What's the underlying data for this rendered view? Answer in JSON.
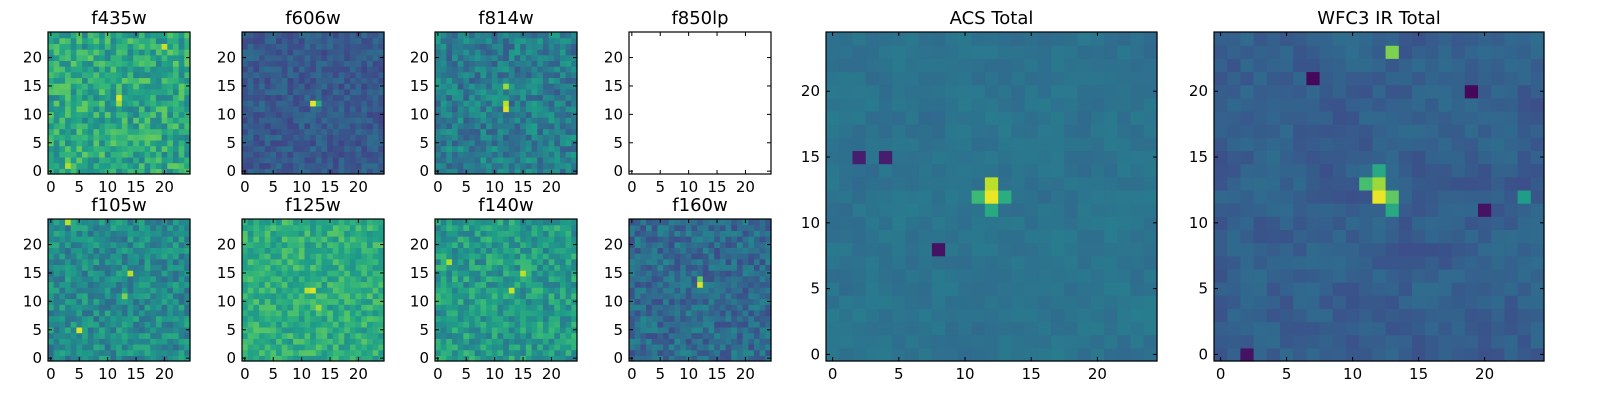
{
  "colors": {
    "colormap": "viridis",
    "viridis_stops": [
      "#440154",
      "#482878",
      "#3e4989",
      "#31688e",
      "#26828e",
      "#1f9e89",
      "#35b779",
      "#6ece58",
      "#b5de2b",
      "#fde725"
    ],
    "axis": "#000000",
    "background": "#ffffff"
  },
  "chart_data": [
    {
      "type": "heatmap",
      "title": "f435w",
      "grid_size": 25,
      "xticks": [
        "0",
        "5",
        "10",
        "15",
        "20"
      ],
      "yticks": [
        "0",
        "5",
        "10",
        "15",
        "20"
      ],
      "xlim": [
        -0.5,
        24.5
      ],
      "ylim": [
        -0.5,
        24.5
      ],
      "grid": false,
      "style": "noisy",
      "background_level": 0.6,
      "noise": 0.16,
      "peaks": [
        {
          "x": 12,
          "y": 13,
          "value": 0.95
        },
        {
          "x": 12,
          "y": 12,
          "value": 0.85
        },
        {
          "x": 20,
          "y": 22,
          "value": 0.92
        },
        {
          "x": 3,
          "y": 1,
          "value": 0.88
        }
      ]
    },
    {
      "type": "heatmap",
      "title": "f606w",
      "grid_size": 25,
      "xticks": [
        "0",
        "5",
        "10",
        "15",
        "20"
      ],
      "yticks": [
        "0",
        "5",
        "10",
        "15",
        "20"
      ],
      "xlim": [
        -0.5,
        24.5
      ],
      "ylim": [
        -0.5,
        24.5
      ],
      "grid": false,
      "style": "noisy",
      "background_level": 0.28,
      "noise": 0.08,
      "peaks": [
        {
          "x": 12,
          "y": 12,
          "value": 0.97
        },
        {
          "x": 13,
          "y": 12,
          "value": 0.6
        }
      ]
    },
    {
      "type": "heatmap",
      "title": "f814w",
      "grid_size": 25,
      "xticks": [
        "0",
        "5",
        "10",
        "15",
        "20"
      ],
      "yticks": [
        "0",
        "5",
        "10",
        "15",
        "20"
      ],
      "xlim": [
        -0.5,
        24.5
      ],
      "ylim": [
        -0.5,
        24.5
      ],
      "grid": false,
      "style": "noisy",
      "background_level": 0.42,
      "noise": 0.14,
      "peaks": [
        {
          "x": 12,
          "y": 11,
          "value": 0.95
        },
        {
          "x": 12,
          "y": 12,
          "value": 0.9
        },
        {
          "x": 12,
          "y": 15,
          "value": 0.85
        }
      ]
    },
    {
      "type": "heatmap",
      "title": "f850lp",
      "grid_size": 25,
      "xticks": [
        "0",
        "5",
        "10",
        "15",
        "20"
      ],
      "yticks": [
        "0",
        "5",
        "10",
        "15",
        "20"
      ],
      "xlim": [
        -0.5,
        24.5
      ],
      "ylim": [
        -0.5,
        24.5
      ],
      "grid": false,
      "style": "empty",
      "background_level": 0,
      "noise": 0,
      "peaks": []
    },
    {
      "type": "heatmap",
      "title": "f105w",
      "grid_size": 25,
      "xticks": [
        "0",
        "5",
        "10",
        "15",
        "20"
      ],
      "yticks": [
        "0",
        "5",
        "10",
        "15",
        "20"
      ],
      "xlim": [
        -0.5,
        24.5
      ],
      "ylim": [
        -0.5,
        24.5
      ],
      "grid": false,
      "style": "noisy",
      "background_level": 0.48,
      "noise": 0.14,
      "peaks": [
        {
          "x": 5,
          "y": 5,
          "value": 0.95
        },
        {
          "x": 14,
          "y": 15,
          "value": 0.9
        },
        {
          "x": 13,
          "y": 11,
          "value": 0.8
        },
        {
          "x": 3,
          "y": 24,
          "value": 0.9
        }
      ]
    },
    {
      "type": "heatmap",
      "title": "f125w",
      "grid_size": 25,
      "xticks": [
        "0",
        "5",
        "10",
        "15",
        "20"
      ],
      "yticks": [
        "0",
        "5",
        "10",
        "15",
        "20"
      ],
      "xlim": [
        -0.5,
        24.5
      ],
      "ylim": [
        -0.5,
        24.5
      ],
      "grid": false,
      "style": "noisy",
      "background_level": 0.62,
      "noise": 0.12,
      "peaks": [
        {
          "x": 12,
          "y": 12,
          "value": 0.95
        },
        {
          "x": 11,
          "y": 12,
          "value": 0.9
        },
        {
          "x": 13,
          "y": 9,
          "value": 0.85
        }
      ]
    },
    {
      "type": "heatmap",
      "title": "f140w",
      "grid_size": 25,
      "xticks": [
        "0",
        "5",
        "10",
        "15",
        "20"
      ],
      "yticks": [
        "0",
        "5",
        "10",
        "15",
        "20"
      ],
      "xlim": [
        -0.5,
        24.5
      ],
      "ylim": [
        -0.5,
        24.5
      ],
      "grid": false,
      "style": "noisy",
      "background_level": 0.55,
      "noise": 0.14,
      "peaks": [
        {
          "x": 13,
          "y": 12,
          "value": 0.92
        },
        {
          "x": 15,
          "y": 15,
          "value": 0.9
        },
        {
          "x": 2,
          "y": 17,
          "value": 0.88
        }
      ]
    },
    {
      "type": "heatmap",
      "title": "f160w",
      "grid_size": 25,
      "xticks": [
        "0",
        "5",
        "10",
        "15",
        "20"
      ],
      "yticks": [
        "0",
        "5",
        "10",
        "15",
        "20"
      ],
      "xlim": [
        -0.5,
        24.5
      ],
      "ylim": [
        -0.5,
        24.5
      ],
      "grid": false,
      "style": "noisy",
      "background_level": 0.35,
      "noise": 0.12,
      "peaks": [
        {
          "x": 12,
          "y": 13,
          "value": 0.95
        },
        {
          "x": 12,
          "y": 14,
          "value": 0.75
        }
      ]
    },
    {
      "type": "heatmap",
      "title": "ACS Total",
      "grid_size": 25,
      "xticks": [
        "0",
        "5",
        "10",
        "15",
        "20"
      ],
      "yticks": [
        "0",
        "5",
        "10",
        "15",
        "20"
      ],
      "xlim": [
        -0.5,
        24.5
      ],
      "ylim": [
        -0.5,
        24.5
      ],
      "grid": false,
      "style": "smooth",
      "background_level": 0.38,
      "noise": 0.06,
      "peaks": [
        {
          "x": 12,
          "y": 12,
          "value": 0.97
        },
        {
          "x": 12,
          "y": 13,
          "value": 0.9
        },
        {
          "x": 11,
          "y": 12,
          "value": 0.68
        },
        {
          "x": 13,
          "y": 12,
          "value": 0.62
        },
        {
          "x": 12,
          "y": 11,
          "value": 0.6
        }
      ],
      "dips": [
        {
          "x": 2,
          "y": 15,
          "value": 0.08
        },
        {
          "x": 4,
          "y": 15,
          "value": 0.08
        },
        {
          "x": 8,
          "y": 8,
          "value": 0.05
        }
      ]
    },
    {
      "type": "heatmap",
      "title": "WFC3 IR Total",
      "grid_size": 25,
      "xticks": [
        "0",
        "5",
        "10",
        "15",
        "20"
      ],
      "yticks": [
        "0",
        "5",
        "10",
        "15",
        "20"
      ],
      "xlim": [
        -0.5,
        24.5
      ],
      "ylim": [
        -0.5,
        24.5
      ],
      "grid": false,
      "style": "smooth",
      "background_level": 0.3,
      "noise": 0.08,
      "peaks": [
        {
          "x": 12,
          "y": 12,
          "value": 0.97
        },
        {
          "x": 12,
          "y": 13,
          "value": 0.85
        },
        {
          "x": 13,
          "y": 12,
          "value": 0.75
        },
        {
          "x": 11,
          "y": 13,
          "value": 0.7
        },
        {
          "x": 12,
          "y": 14,
          "value": 0.6
        },
        {
          "x": 13,
          "y": 11,
          "value": 0.6
        },
        {
          "x": 13,
          "y": 23,
          "value": 0.8
        },
        {
          "x": 23,
          "y": 12,
          "value": 0.55
        }
      ],
      "dips": [
        {
          "x": 7,
          "y": 21,
          "value": 0.02
        },
        {
          "x": 19,
          "y": 20,
          "value": 0.02
        },
        {
          "x": 20,
          "y": 11,
          "value": 0.05
        },
        {
          "x": 2,
          "y": 0,
          "value": 0.05
        }
      ]
    }
  ]
}
